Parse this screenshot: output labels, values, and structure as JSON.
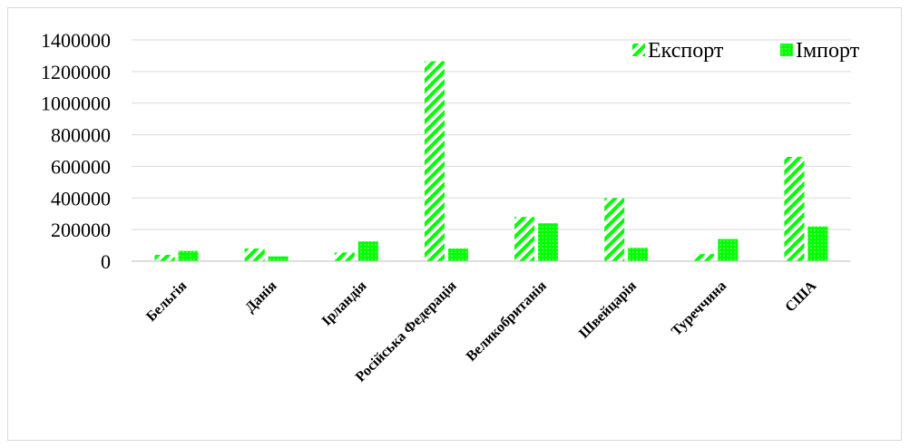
{
  "chart_data": {
    "type": "bar",
    "categories": [
      "Бельгія",
      "Данія",
      "Ірландія",
      "Російська Федерація",
      "Великобританія",
      "Швейцарія",
      "Туреччина",
      "США"
    ],
    "series": [
      {
        "name": "Експорт",
        "values": [
          40000,
          80000,
          55000,
          1265000,
          280000,
          400000,
          45000,
          660000
        ]
      },
      {
        "name": "Імпорт",
        "values": [
          65000,
          30000,
          125000,
          80000,
          240000,
          85000,
          140000,
          220000
        ]
      }
    ],
    "yticks": [
      "0",
      "200000",
      "400000",
      "600000",
      "800000",
      "1000000",
      "1200000",
      "1400000"
    ],
    "ylim": [
      0,
      1400000
    ],
    "grid": true,
    "legend_position": "top-right",
    "colors": {
      "bar": "#00ff00",
      "grid": "#d9d9d9",
      "axis": "#bfbfbf"
    }
  }
}
